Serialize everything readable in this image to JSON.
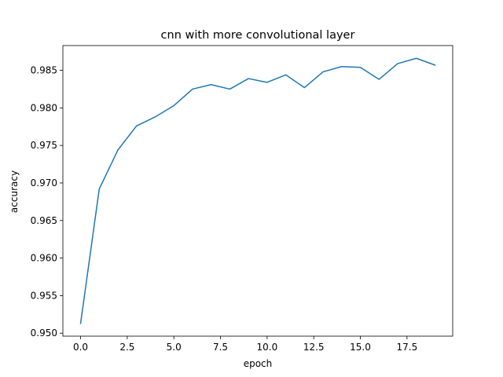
{
  "chart_data": {
    "type": "line",
    "title": "cnn with more convolutional layer",
    "xlabel": "epoch",
    "ylabel": "accuracy",
    "xlim": [
      -0.95,
      19.95
    ],
    "ylim": [
      0.9496,
      0.9883
    ],
    "xticks": [
      0.0,
      2.5,
      5.0,
      7.5,
      10.0,
      12.5,
      15.0,
      17.5
    ],
    "xtick_labels": [
      "0.0",
      "2.5",
      "5.0",
      "7.5",
      "10.0",
      "12.5",
      "15.0",
      "17.5"
    ],
    "yticks": [
      0.95,
      0.955,
      0.96,
      0.965,
      0.97,
      0.975,
      0.98,
      0.985
    ],
    "ytick_labels": [
      "0.950",
      "0.955",
      "0.960",
      "0.965",
      "0.970",
      "0.975",
      "0.980",
      "0.985"
    ],
    "grid": false,
    "series": [
      {
        "color": "#1f77b4",
        "x": [
          0,
          1,
          2,
          3,
          4,
          5,
          6,
          7,
          8,
          9,
          10,
          11,
          12,
          13,
          14,
          15,
          16,
          17,
          18,
          19
        ],
        "values": [
          0.9513,
          0.9692,
          0.9744,
          0.9776,
          0.9788,
          0.9803,
          0.9825,
          0.9831,
          0.9825,
          0.9839,
          0.9834,
          0.9844,
          0.9827,
          0.9848,
          0.9855,
          0.9854,
          0.9838,
          0.9859,
          0.9866,
          0.9857
        ]
      }
    ]
  }
}
